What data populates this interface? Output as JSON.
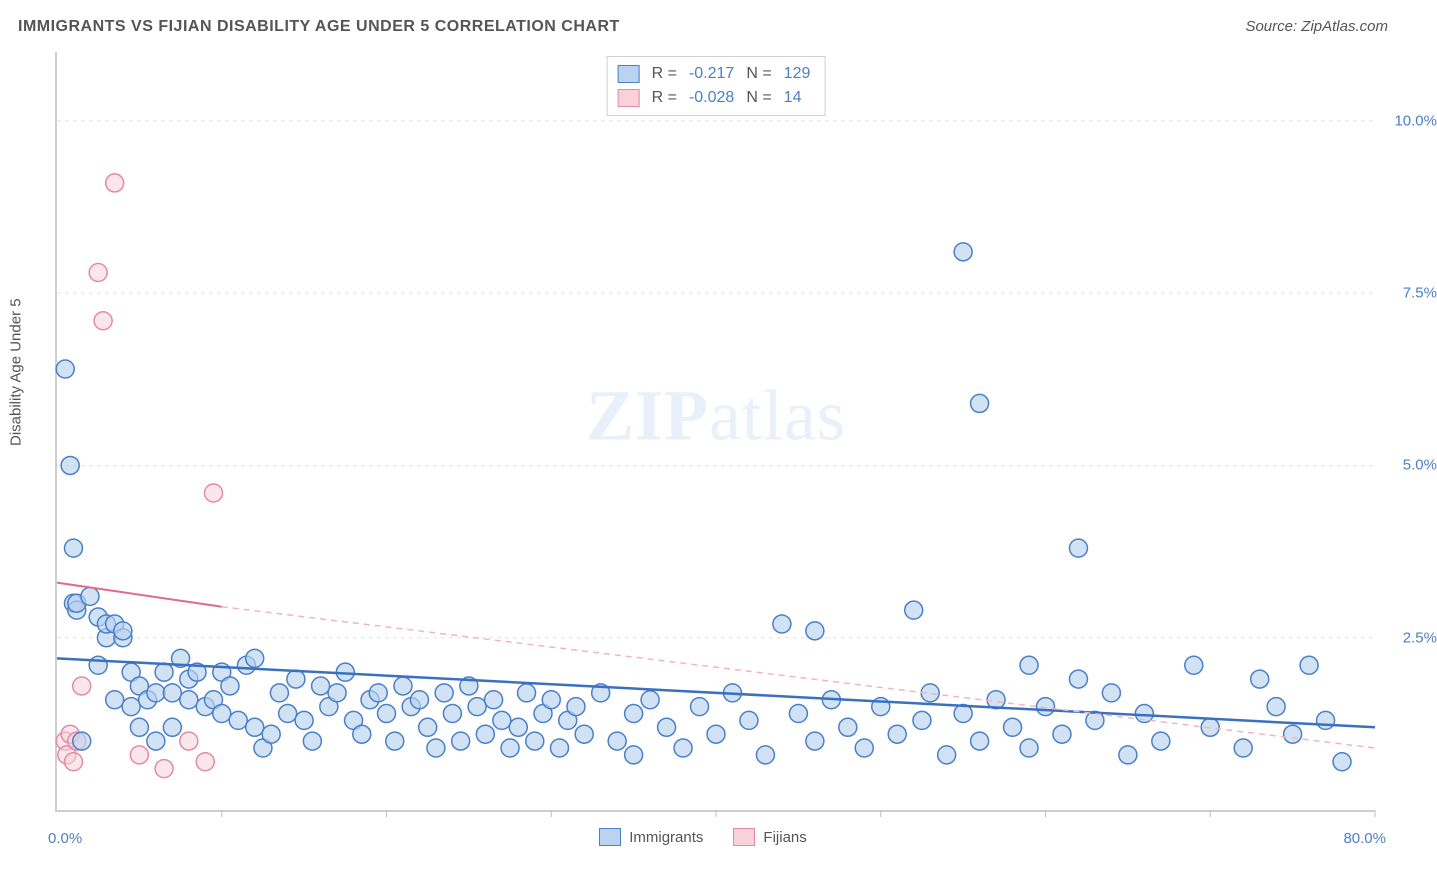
{
  "title": "IMMIGRANTS VS FIJIAN DISABILITY AGE UNDER 5 CORRELATION CHART",
  "source_label": "Source: ZipAtlas.com",
  "ylabel": "Disability Age Under 5",
  "watermark": {
    "bold": "ZIP",
    "rest": "atlas"
  },
  "chart": {
    "type": "scatter",
    "background_color": "#ffffff",
    "grid_color": "#e2e2e2",
    "axis_color": "#cfcfcf",
    "xlim": [
      0,
      80
    ],
    "ylim": [
      0,
      11
    ],
    "x_min_label": "0.0%",
    "x_max_label": "80.0%",
    "yticks": [
      {
        "value": 2.5,
        "label": "2.5%"
      },
      {
        "value": 5.0,
        "label": "5.0%"
      },
      {
        "value": 7.5,
        "label": "7.5%"
      },
      {
        "value": 10.0,
        "label": "10.0%"
      }
    ],
    "xtick_positions": [
      10,
      20,
      30,
      40,
      50,
      60,
      70,
      80
    ],
    "marker_radius": 9,
    "marker_stroke_width": 1.5,
    "series": {
      "immigrants": {
        "label": "Immigrants",
        "fill": "#b9d3f0",
        "stroke": "#4a80c7",
        "fill_opacity": 0.65,
        "R": "-0.217",
        "N": "129",
        "trend": {
          "x1": 0,
          "y1": 2.2,
          "x2": 80,
          "y2": 1.2,
          "color": "#3b6fc0",
          "width": 2.5,
          "dash": "0"
        },
        "points": [
          [
            0.5,
            6.4
          ],
          [
            0.8,
            5.0
          ],
          [
            1.0,
            3.0
          ],
          [
            1.0,
            3.8
          ],
          [
            1.2,
            2.9
          ],
          [
            1.2,
            3.0
          ],
          [
            1.5,
            1.0
          ],
          [
            2.0,
            3.1
          ],
          [
            2.5,
            2.8
          ],
          [
            2.5,
            2.1
          ],
          [
            3.0,
            2.5
          ],
          [
            3.0,
            2.7
          ],
          [
            3.5,
            2.7
          ],
          [
            3.5,
            1.6
          ],
          [
            4.0,
            2.5
          ],
          [
            4.0,
            2.6
          ],
          [
            4.5,
            2.0
          ],
          [
            4.5,
            1.5
          ],
          [
            5.0,
            1.8
          ],
          [
            5.0,
            1.2
          ],
          [
            5.5,
            1.6
          ],
          [
            6.0,
            1.7
          ],
          [
            6.0,
            1.0
          ],
          [
            6.5,
            2.0
          ],
          [
            7.0,
            1.7
          ],
          [
            7.0,
            1.2
          ],
          [
            7.5,
            2.2
          ],
          [
            8.0,
            1.6
          ],
          [
            8.0,
            1.9
          ],
          [
            8.5,
            2.0
          ],
          [
            9.0,
            1.5
          ],
          [
            9.5,
            1.6
          ],
          [
            10.0,
            1.4
          ],
          [
            10.0,
            2.0
          ],
          [
            10.5,
            1.8
          ],
          [
            11.0,
            1.3
          ],
          [
            11.5,
            2.1
          ],
          [
            12.0,
            2.2
          ],
          [
            12.0,
            1.2
          ],
          [
            12.5,
            0.9
          ],
          [
            13.0,
            1.1
          ],
          [
            13.5,
            1.7
          ],
          [
            14.0,
            1.4
          ],
          [
            14.5,
            1.9
          ],
          [
            15.0,
            1.3
          ],
          [
            15.5,
            1.0
          ],
          [
            16.0,
            1.8
          ],
          [
            16.5,
            1.5
          ],
          [
            17.0,
            1.7
          ],
          [
            17.5,
            2.0
          ],
          [
            18.0,
            1.3
          ],
          [
            18.5,
            1.1
          ],
          [
            19.0,
            1.6
          ],
          [
            19.5,
            1.7
          ],
          [
            20.0,
            1.4
          ],
          [
            20.5,
            1.0
          ],
          [
            21.0,
            1.8
          ],
          [
            21.5,
            1.5
          ],
          [
            22.0,
            1.6
          ],
          [
            22.5,
            1.2
          ],
          [
            23.0,
            0.9
          ],
          [
            23.5,
            1.7
          ],
          [
            24.0,
            1.4
          ],
          [
            24.5,
            1.0
          ],
          [
            25.0,
            1.8
          ],
          [
            25.5,
            1.5
          ],
          [
            26.0,
            1.1
          ],
          [
            26.5,
            1.6
          ],
          [
            27.0,
            1.3
          ],
          [
            27.5,
            0.9
          ],
          [
            28.0,
            1.2
          ],
          [
            28.5,
            1.7
          ],
          [
            29.0,
            1.0
          ],
          [
            29.5,
            1.4
          ],
          [
            30.0,
            1.6
          ],
          [
            30.5,
            0.9
          ],
          [
            31.0,
            1.3
          ],
          [
            31.5,
            1.5
          ],
          [
            32.0,
            1.1
          ],
          [
            33.0,
            1.7
          ],
          [
            34.0,
            1.0
          ],
          [
            35.0,
            1.4
          ],
          [
            35.0,
            0.8
          ],
          [
            36.0,
            1.6
          ],
          [
            37.0,
            1.2
          ],
          [
            38.0,
            0.9
          ],
          [
            39.0,
            1.5
          ],
          [
            40.0,
            1.1
          ],
          [
            41.0,
            1.7
          ],
          [
            42.0,
            1.3
          ],
          [
            43.0,
            0.8
          ],
          [
            44.0,
            2.7
          ],
          [
            45.0,
            1.4
          ],
          [
            46.0,
            1.0
          ],
          [
            46.0,
            2.6
          ],
          [
            47.0,
            1.6
          ],
          [
            48.0,
            1.2
          ],
          [
            49.0,
            0.9
          ],
          [
            50.0,
            1.5
          ],
          [
            51.0,
            1.1
          ],
          [
            52.0,
            2.9
          ],
          [
            52.5,
            1.3
          ],
          [
            53.0,
            1.7
          ],
          [
            54.0,
            0.8
          ],
          [
            55.0,
            1.4
          ],
          [
            55.0,
            8.1
          ],
          [
            56.0,
            1.0
          ],
          [
            56.0,
            5.9
          ],
          [
            57.0,
            1.6
          ],
          [
            58.0,
            1.2
          ],
          [
            59.0,
            2.1
          ],
          [
            59.0,
            0.9
          ],
          [
            60.0,
            1.5
          ],
          [
            61.0,
            1.1
          ],
          [
            62.0,
            1.9
          ],
          [
            62.0,
            3.8
          ],
          [
            63.0,
            1.3
          ],
          [
            64.0,
            1.7
          ],
          [
            65.0,
            0.8
          ],
          [
            66.0,
            1.4
          ],
          [
            67.0,
            1.0
          ],
          [
            69.0,
            2.1
          ],
          [
            70.0,
            1.2
          ],
          [
            72.0,
            0.9
          ],
          [
            73.0,
            1.9
          ],
          [
            74.0,
            1.5
          ],
          [
            75.0,
            1.1
          ],
          [
            76.0,
            2.1
          ],
          [
            77.0,
            1.3
          ],
          [
            78.0,
            0.7
          ]
        ]
      },
      "fijians": {
        "label": "Fijians",
        "fill": "#f8d1db",
        "stroke": "#e48aa5",
        "fill_opacity": 0.55,
        "R": "-0.028",
        "N": "14",
        "trend_solid": {
          "x1": 0,
          "y1": 3.3,
          "x2": 10,
          "y2": 2.95,
          "color": "#e06a8c",
          "width": 2.0
        },
        "trend_dash": {
          "x1": 10,
          "y1": 2.95,
          "x2": 80,
          "y2": 0.9,
          "color": "#f2b4c4",
          "width": 1.5,
          "dash": "6 5"
        },
        "points": [
          [
            0.5,
            1.0
          ],
          [
            0.6,
            0.8
          ],
          [
            0.8,
            1.1
          ],
          [
            1.0,
            0.7
          ],
          [
            1.2,
            1.0
          ],
          [
            1.5,
            1.8
          ],
          [
            2.5,
            7.8
          ],
          [
            2.8,
            7.1
          ],
          [
            3.5,
            9.1
          ],
          [
            5.0,
            0.8
          ],
          [
            6.5,
            0.6
          ],
          [
            8.0,
            1.0
          ],
          [
            9.0,
            0.7
          ],
          [
            9.5,
            4.6
          ]
        ]
      }
    },
    "bottom_legend": [
      "Immigrants",
      "Fijians"
    ],
    "stats_labels": {
      "R": "R =",
      "N": "N ="
    }
  }
}
